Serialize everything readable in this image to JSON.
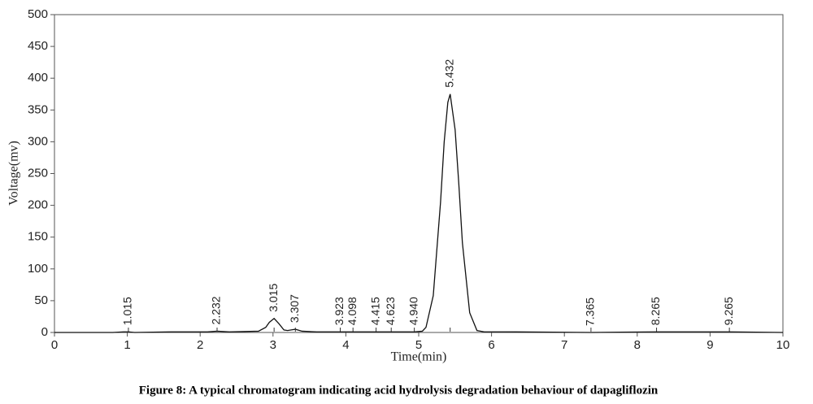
{
  "chart_data": {
    "type": "line",
    "x_label": "Time(min)",
    "y_label": "Voltage(mv)",
    "caption": "Figure 8: A typical chromatogram indicating acid hydrolysis degradation behaviour of dapagliflozin",
    "x": [
      0,
      0.8,
      0.95,
      1.015,
      1.1,
      1.6,
      2.1,
      2.232,
      2.4,
      2.8,
      2.9,
      2.95,
      3.015,
      3.08,
      3.15,
      3.2,
      3.25,
      3.307,
      3.4,
      3.6,
      3.923,
      4.098,
      4.415,
      4.623,
      4.94,
      5.05,
      5.1,
      5.2,
      5.3,
      5.35,
      5.4,
      5.432,
      5.5,
      5.55,
      5.6,
      5.7,
      5.8,
      5.9,
      6.2,
      7.365,
      8.265,
      9.265,
      10
    ],
    "series": [
      {
        "name": "signal",
        "color": "#111111",
        "values": [
          0,
          0,
          1,
          1,
          0,
          1,
          1,
          2,
          1,
          2,
          8,
          16,
          22,
          14,
          4,
          3,
          4,
          5,
          2,
          1,
          1,
          1,
          1,
          1,
          1,
          2,
          8,
          58,
          205,
          300,
          362,
          375,
          319,
          235,
          141,
          31,
          3,
          1,
          1,
          0,
          1,
          1,
          0
        ]
      }
    ],
    "peaks": {
      "x": [
        1.015,
        2.232,
        3.015,
        3.307,
        3.923,
        4.098,
        4.415,
        4.623,
        4.94,
        5.432,
        7.365,
        8.265,
        9.265
      ],
      "labels": [
        "1.015",
        "2.232",
        "3.015",
        "3.307",
        "3.923",
        "4.098",
        "4.415",
        "4.623",
        "4.940",
        "5.432",
        "7.365",
        "8.265",
        "9.265"
      ]
    },
    "xlim": [
      0,
      10
    ],
    "ylim": [
      0,
      500
    ],
    "xticks": [
      0,
      1,
      2,
      3,
      4,
      5,
      6,
      7,
      8,
      9,
      10
    ],
    "yticks": [
      0,
      50,
      100,
      150,
      200,
      250,
      300,
      350,
      400,
      450,
      500
    ],
    "grid": false
  }
}
